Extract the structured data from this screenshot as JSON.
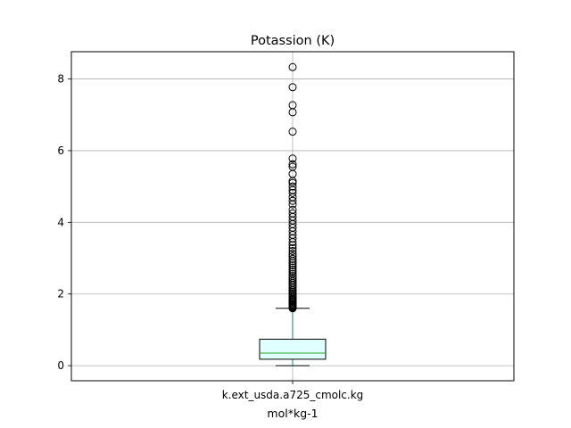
{
  "chart_data": {
    "type": "box",
    "title": "Potassion (K)",
    "xlabel": "mol*kg-1",
    "categories": [
      "k.ext_usda.a725_cmolc.kg"
    ],
    "ylim": [
      -0.42,
      8.76
    ],
    "yticks": [
      0,
      2,
      4,
      6,
      8
    ],
    "grid": true,
    "colors": {
      "box_fill": "#e0ffff",
      "box_edge": "#000000",
      "whisker": "#1f77b4",
      "median": "#2ca02c",
      "flier_edge": "#000000",
      "grid": "#b0b0b0"
    },
    "box": {
      "whisker_low": 0.0,
      "q1": 0.18,
      "median": 0.35,
      "q3": 0.74,
      "whisker_high": 1.6
    },
    "outliers": [
      1.6,
      1.62,
      1.64,
      1.66,
      1.68,
      1.7,
      1.72,
      1.75,
      1.78,
      1.8,
      1.83,
      1.86,
      1.9,
      1.94,
      1.98,
      2.02,
      2.06,
      2.1,
      2.15,
      2.2,
      2.25,
      2.3,
      2.35,
      2.4,
      2.45,
      2.5,
      2.56,
      2.62,
      2.68,
      2.74,
      2.8,
      2.86,
      2.92,
      2.98,
      3.05,
      3.12,
      3.2,
      3.28,
      3.36,
      3.45,
      3.55,
      3.65,
      3.75,
      3.85,
      3.95,
      4.05,
      4.15,
      4.25,
      4.35,
      4.5,
      4.6,
      4.7,
      4.82,
      4.9,
      5.0,
      5.1,
      5.15,
      5.35,
      5.55,
      5.62,
      5.78,
      6.53,
      7.07,
      7.27,
      7.77,
      8.33
    ]
  }
}
